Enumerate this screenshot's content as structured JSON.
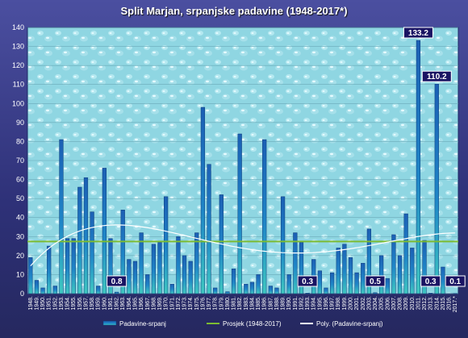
{
  "chart_data": {
    "type": "bar",
    "title": "Split Marjan, srpanjske padavine (1948-2017*)",
    "ylim": [
      0,
      140
    ],
    "ytick_step": 10,
    "grid": true,
    "legend_position": "bottom",
    "categories": [
      "1948.",
      "1949.",
      "1950.",
      "1951.",
      "1952.",
      "1953.",
      "1954.",
      "1955.",
      "1956.",
      "1957.",
      "1958.",
      "1959.",
      "1960.",
      "1961.",
      "1962.",
      "1963.",
      "1964.",
      "1965.",
      "1966.",
      "1967.",
      "1968.",
      "1969.",
      "1970.",
      "1971.",
      "1972.",
      "1973.",
      "1974.",
      "1975.",
      "1976.",
      "1977.",
      "1978.",
      "1979.",
      "1980.",
      "1981.",
      "1982.",
      "1983.",
      "1984.",
      "1985.",
      "1986.",
      "1987.",
      "1988.",
      "1989.",
      "1990.",
      "1991.",
      "1992.",
      "1993.",
      "1994.",
      "1995.",
      "1996.",
      "1997.",
      "1998.",
      "1999.",
      "2000.",
      "2001.",
      "2002.",
      "2003.",
      "2004.",
      "2005.",
      "2006.",
      "2007.",
      "2008.",
      "2009.",
      "2010.",
      "2011.",
      "2012.",
      "2013.",
      "2014.",
      "2015.",
      "2016.",
      "2017.*"
    ],
    "series": [
      {
        "name": "Padavine-srpanj",
        "color": "#1a6fc4",
        "values": [
          19,
          7,
          3,
          25,
          4,
          81,
          29,
          29,
          56,
          61,
          43,
          4,
          66,
          29,
          0.8,
          44,
          18,
          17,
          32,
          10,
          26,
          27,
          51,
          5,
          30,
          20,
          17,
          32,
          98,
          68,
          3,
          52,
          1,
          13,
          84,
          5,
          6,
          10,
          81,
          4,
          3,
          51,
          10,
          32,
          27,
          0.3,
          18,
          12,
          3,
          11,
          24,
          26,
          19,
          11,
          16,
          34,
          0.5,
          20,
          8,
          31,
          20,
          42,
          24,
          133.2,
          28,
          0.3,
          110.2,
          14,
          0,
          0.1
        ]
      }
    ],
    "average": {
      "name": "Prosjek (1948-2017)",
      "value": 27.4,
      "color": "#7cbb32"
    },
    "trend": {
      "name": "Poly. (Padavine-srpanj)",
      "color": "#ffffff"
    },
    "data_labels": [
      {
        "index": 14,
        "text": "0.8"
      },
      {
        "index": 45,
        "text": "0.3"
      },
      {
        "index": 56,
        "text": "0.5"
      },
      {
        "index": 63,
        "text": "133.2"
      },
      {
        "index": 65,
        "text": "0.3"
      },
      {
        "index": 66,
        "text": "110.2"
      },
      {
        "index": 69,
        "text": "0.1"
      }
    ]
  }
}
